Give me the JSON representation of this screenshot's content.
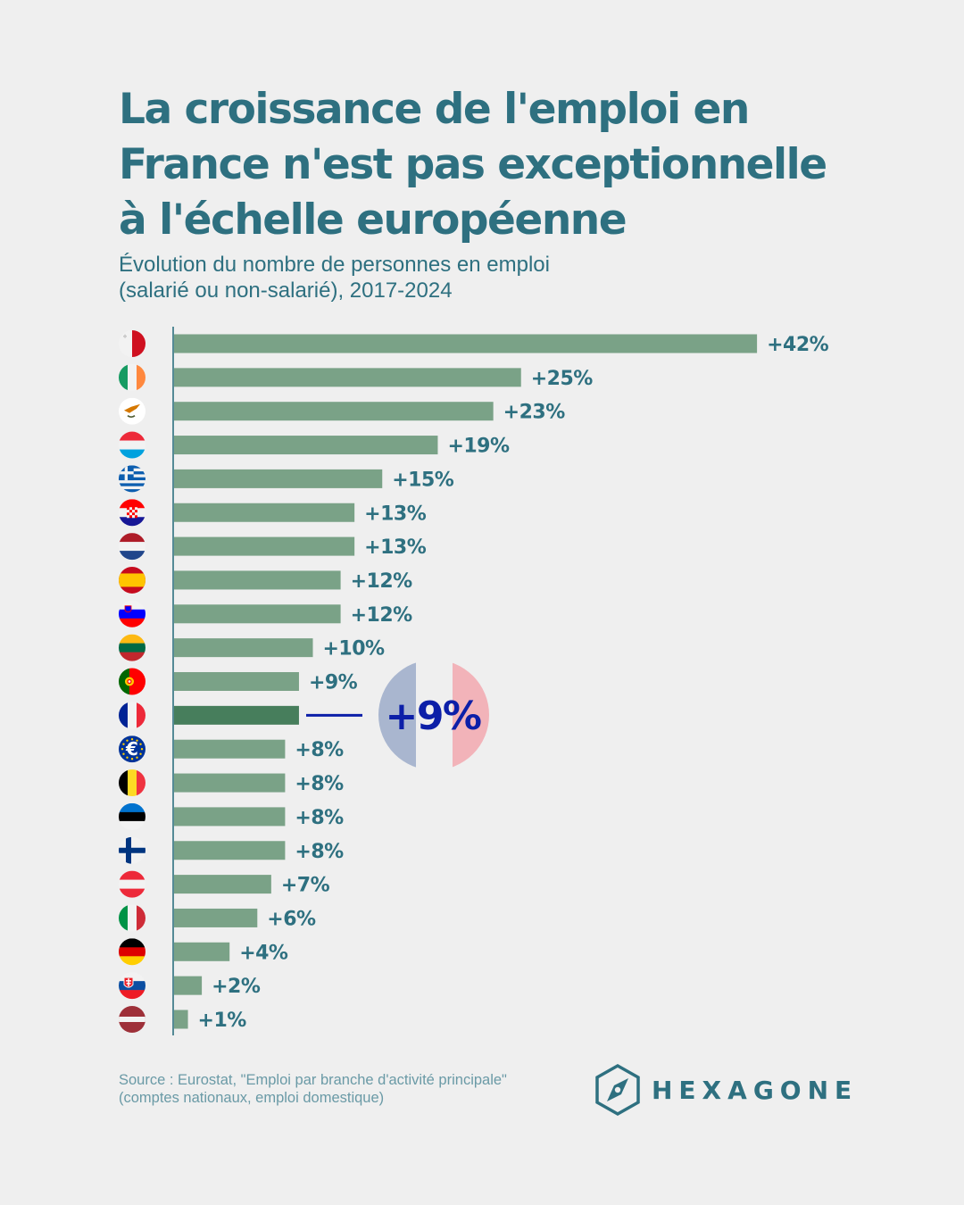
{
  "header": {
    "title_lines": [
      "La croissance de l'emploi en",
      "France n'est pas exceptionnelle",
      "à l'échelle européenne"
    ],
    "subtitle_lines": [
      "Évolution du nombre de personnes en emploi",
      "(salarié ou non-salarié), 2017-2024"
    ]
  },
  "colors": {
    "bar": "#7aa287",
    "bar_highlight": "#477e5c",
    "axis": "#2e7080",
    "label": "#2e7080",
    "callout_text": "#0c1fa8",
    "callout_line": "#0c1fa8",
    "callout_blue": "#a9b6cf",
    "callout_white": "#efefef",
    "callout_red": "#f2b3b9"
  },
  "chart_data": {
    "type": "bar",
    "orientation": "horizontal",
    "title": "La croissance de l'emploi en France n'est pas exceptionnelle à l'échelle européenne",
    "subtitle": "Évolution du nombre de personnes en emploi (salarié ou non-salarié), 2017-2024",
    "xlabel": "",
    "ylabel": "",
    "xlim": [
      0,
      45
    ],
    "grid": false,
    "unit": "%",
    "categories": [
      "Malte",
      "Irlande",
      "Chypre",
      "Luxembourg",
      "Grèce",
      "Croatie",
      "Pays-Bas",
      "Espagne",
      "Slovénie",
      "Lituanie",
      "Portugal",
      "France",
      "Zone euro",
      "Belgique",
      "Estonie",
      "Finlande",
      "Autriche",
      "Italie",
      "Allemagne",
      "Slovaquie",
      "Lettonie"
    ],
    "flags": [
      "malta",
      "ireland",
      "cyprus",
      "luxembourg",
      "greece",
      "croatia",
      "netherlands",
      "spain",
      "slovenia",
      "lithuania",
      "portugal",
      "france",
      "euro-area",
      "belgium",
      "estonia",
      "finland",
      "austria",
      "italy",
      "germany",
      "slovakia",
      "latvia"
    ],
    "values": [
      42,
      25,
      23,
      19,
      15,
      13,
      13,
      12,
      12,
      10,
      9,
      9,
      8,
      8,
      8,
      8,
      7,
      6,
      4,
      2,
      1
    ],
    "labels": [
      "+42%",
      "+25%",
      "+23%",
      "+19%",
      "+15%",
      "+13%",
      "+13%",
      "+12%",
      "+12%",
      "+10%",
      "+9%",
      "",
      "+8%",
      "+8%",
      "+8%",
      "+8%",
      "+7%",
      "+6%",
      "+4%",
      "+2%",
      "+1%"
    ],
    "highlight_index": 11,
    "annotation": {
      "target": "France",
      "text": "+9%"
    }
  },
  "footer": {
    "source_lines": [
      "Source : Eurostat, \"Emploi par branche d'activité principale\"",
      "(comptes nationaux, emploi domestique)"
    ],
    "logo_text": "HEXAGONE",
    "logo_icon": "hexagon-compass-icon"
  }
}
